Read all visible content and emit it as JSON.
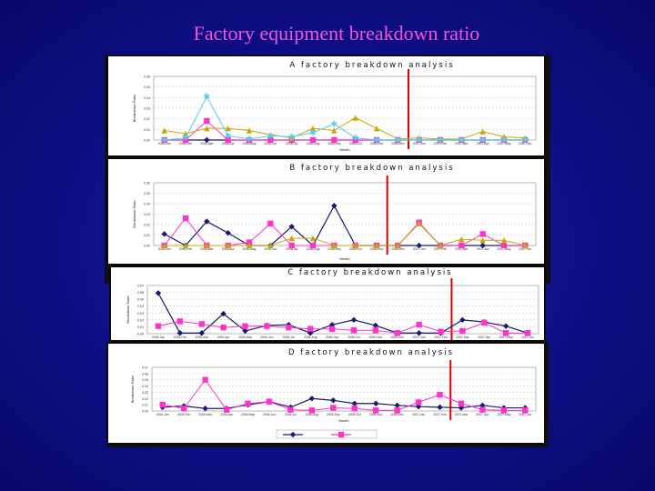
{
  "slide": {
    "title": "Factory equipment breakdown ratio"
  },
  "colors": {
    "series1": "#1a1a6e",
    "series2": "#ff33cc",
    "series3": "#c8a800",
    "series4": "#55ccee",
    "separator": "#dd0000"
  },
  "chart_data": [
    {
      "type": "line",
      "title": "A factory breakdown analysis",
      "xlabel": "Month",
      "ylabel": "Breakdown Ratio",
      "ylim": [
        0,
        0.06
      ],
      "yticks": [
        "0.00",
        "0.01",
        "0.02",
        "0.03",
        "0.04",
        "0.05",
        "0.06"
      ],
      "x": [
        "2006-Jan",
        "2006-Feb",
        "2006-Mar",
        "2006-Apr",
        "2006-May",
        "2006-Jun",
        "2006-Jul",
        "2006-Aug",
        "2006-Sep",
        "2006-Oct",
        "2006-Nov",
        "2006-Dec",
        "2007-Jan",
        "2007-Feb",
        "2007-Mar",
        "2007-Apr",
        "2007-May",
        "2007-Jun"
      ],
      "separator_after_index": 11,
      "series": [
        {
          "values": [
            0,
            0,
            0,
            0,
            0,
            0,
            0,
            0,
            0,
            0,
            0,
            0,
            0,
            0,
            0,
            0,
            0,
            0
          ]
        },
        {
          "values": [
            0,
            0,
            0.018,
            0,
            0,
            0,
            0,
            0,
            0,
            0,
            0,
            0,
            0,
            0,
            0,
            0,
            0,
            0
          ]
        },
        {
          "values": [
            0.009,
            0.006,
            0.011,
            0.011,
            0.009,
            0.005,
            0.002,
            0.011,
            0.009,
            0.021,
            0.011,
            0.001,
            0.002,
            0.001,
            0.001,
            0.008,
            0.003,
            0.002
          ]
        },
        {
          "values": [
            0,
            0.002,
            0.041,
            0.004,
            0.001,
            0.004,
            0.003,
            0.007,
            0.015,
            0.002,
            0,
            0,
            0,
            0,
            0,
            0,
            0,
            0
          ]
        }
      ]
    },
    {
      "type": "line",
      "title": "B factory breakdown analysis",
      "xlabel": "Month",
      "ylabel": "Breakdown Ratio",
      "ylim": [
        0,
        0.06
      ],
      "yticks": [
        "0.00",
        "0.01",
        "0.02",
        "0.03",
        "0.04",
        "0.05",
        "0.06"
      ],
      "x": [
        "2006-Jan",
        "2006-Feb",
        "2006-Mar",
        "2006-Apr",
        "2006-May",
        "2006-Jun",
        "2006-Jul",
        "2006-Aug",
        "2006-Sep",
        "2006-Oct",
        "2006-Nov",
        "2006-Dec",
        "2007-Jan",
        "2007-Feb",
        "2007-Mar",
        "2007-Apr",
        "2007-May",
        "2007-Jun"
      ],
      "separator_after_index": 10,
      "series": [
        {
          "values": [
            0.011,
            0,
            0.023,
            0.012,
            0,
            0,
            0.018,
            0,
            0.038,
            0,
            0,
            0,
            0,
            0,
            0,
            0,
            0,
            0
          ]
        },
        {
          "values": [
            0,
            0.026,
            0,
            0,
            0.003,
            0.021,
            0,
            0,
            0,
            0,
            0,
            0,
            0.022,
            0,
            0,
            0.011,
            0,
            0
          ]
        },
        {
          "values": [
            0,
            0,
            0,
            0,
            0,
            0,
            0.007,
            0.007,
            0,
            0,
            0,
            0,
            0.021,
            0,
            0.006,
            0.005,
            0.005,
            0
          ]
        }
      ]
    },
    {
      "type": "line",
      "title": "C factory breakdown analysis",
      "xlabel": "Month",
      "ylabel": "Breakdown Ratio",
      "ylim": [
        0,
        0.07
      ],
      "yticks": [
        "0.00",
        "0.01",
        "0.02",
        "0.03",
        "0.04",
        "0.05",
        "0.06",
        "0.07"
      ],
      "x": [
        "2006-Jan",
        "2006-Feb",
        "2006-Mar",
        "2006-Apr",
        "2006-May",
        "2006-Jun",
        "2006-Jul",
        "2006-Aug",
        "2006-Sep",
        "2006-Oct",
        "2006-Nov",
        "2006-Dec",
        "2007-Jan",
        "2007-Feb",
        "2007-Mar",
        "2007-Apr",
        "2007-May",
        "2007-Jun"
      ],
      "separator_after_index": 13,
      "series": [
        {
          "values": [
            0.059,
            0.001,
            0.001,
            0.029,
            0.004,
            0.012,
            0.013,
            0.001,
            0.013,
            0.02,
            0.012,
            0.001,
            0.001,
            0.001,
            0.02,
            0.017,
            0.011,
            0.001
          ]
        },
        {
          "values": [
            0.011,
            0.018,
            0.014,
            0.009,
            0.011,
            0.011,
            0.009,
            0.007,
            0.007,
            0.005,
            0.005,
            0.001,
            0.013,
            0.003,
            0.004,
            0.016,
            0.001,
            0.001
          ]
        }
      ]
    },
    {
      "type": "line",
      "title": "D factory breakdown analysis",
      "xlabel": "Month",
      "ylabel": "Breakdown Ratio",
      "ylim": [
        0,
        0.07
      ],
      "yticks": [
        "0.00",
        "0.01",
        "0.02",
        "0.03",
        "0.04",
        "0.05",
        "0.06",
        "0.07"
      ],
      "x": [
        "2006-Jan",
        "2006-Feb",
        "2006-Mar",
        "2006-Apr",
        "2006-May",
        "2006-Jun",
        "2006-Jul",
        "2006-Aug",
        "2006-Sep",
        "2006-Oct",
        "2006-Nov",
        "2006-Dec",
        "2007-Jan",
        "2007-Feb",
        "2007-Mar",
        "2007-Apr",
        "2007-May",
        "2007-Jun"
      ],
      "separator_after_index": 13,
      "series": [
        {
          "values": [
            0.006,
            0.008,
            0.004,
            0.004,
            0.01,
            0.015,
            0.006,
            0.02,
            0.017,
            0.012,
            0.012,
            0.009,
            0.007,
            0.006,
            0.005,
            0.009,
            0.005,
            0.005
          ]
        },
        {
          "values": [
            0.01,
            0.004,
            0.05,
            0.002,
            0.012,
            0.015,
            0.002,
            0.001,
            0.005,
            0.004,
            0.001,
            0.001,
            0.014,
            0.026,
            0.012,
            0.002,
            0.001,
            0.001
          ]
        }
      ]
    }
  ]
}
